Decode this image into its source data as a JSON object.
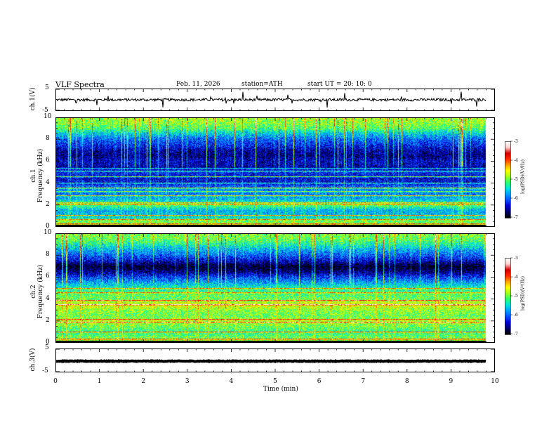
{
  "header": {
    "title": "VLF  Spectra",
    "date": "Feb. 11, 2026",
    "station": "station=ATH",
    "start": "start  UT  =   20: 10: 0"
  },
  "colors": {
    "colormap": [
      "#000000",
      "#00006e",
      "#0000d2",
      "#0a50ff",
      "#00a0ff",
      "#00e6dc",
      "#2dff6e",
      "#a0ff1e",
      "#ffff00",
      "#ffa000",
      "#ff2800",
      "#d20000",
      "#ffd2d2",
      "#ffffff"
    ]
  },
  "chart_data": [
    {
      "type": "line",
      "name": "ch1-waveform",
      "ylabel": "ch.1(V)",
      "ylim": [
        -5,
        5
      ],
      "yticks": [
        "5",
        "-5"
      ],
      "xlim": [
        0,
        10
      ],
      "description_of_signal": "noisy waveform around 0 V with occasional spikes",
      "baseline": 0.0,
      "noise_amplitude": 0.6,
      "grid": false
    },
    {
      "type": "heatmap",
      "name": "ch1-spectrogram",
      "ylabel": "ch.1\nFrequency  (kHz)",
      "ylim": [
        0,
        10
      ],
      "yticks": [
        "0",
        "2",
        "4",
        "6",
        "8",
        "10"
      ],
      "xlim": [
        0,
        10
      ],
      "data_end_min": 9.8,
      "colorbar": {
        "label": "log(PSD)(V²/Hz)",
        "range": [
          -7,
          -3
        ],
        "ticks": [
          "-3",
          "-4",
          "-5",
          "-6",
          "-7"
        ]
      },
      "profile": [
        {
          "f": 0.0,
          "v": -4.8
        },
        {
          "f": 0.5,
          "v": -5.0
        },
        {
          "f": 1.0,
          "v": -5.6
        },
        {
          "f": 1.5,
          "v": -5.7
        },
        {
          "f": 2.0,
          "v": -5.1
        },
        {
          "f": 2.5,
          "v": -5.6
        },
        {
          "f": 3.0,
          "v": -5.9
        },
        {
          "f": 3.5,
          "v": -5.8
        },
        {
          "f": 4.0,
          "v": -6.3
        },
        {
          "f": 4.5,
          "v": -6.4
        },
        {
          "f": 5.0,
          "v": -6.2
        },
        {
          "f": 5.5,
          "v": -6.5
        },
        {
          "f": 6.0,
          "v": -6.4
        },
        {
          "f": 6.5,
          "v": -6.6
        },
        {
          "f": 7.0,
          "v": -6.5
        },
        {
          "f": 7.5,
          "v": -6.2
        },
        {
          "f": 8.0,
          "v": -6.0
        },
        {
          "f": 8.5,
          "v": -5.6
        },
        {
          "f": 9.0,
          "v": -5.1
        },
        {
          "f": 9.5,
          "v": -4.9
        },
        {
          "f": 10.0,
          "v": -4.8
        }
      ],
      "lines_khz": [
        0.3,
        0.7,
        1.1,
        2.1,
        2.25,
        2.9,
        3.3,
        3.6,
        4.05,
        4.6,
        5.1,
        5.4
      ]
    },
    {
      "type": "heatmap",
      "name": "ch2-spectrogram",
      "ylabel": "ch.2\nFrequency  (kHz)",
      "ylim": [
        0,
        10
      ],
      "yticks": [
        "0",
        "2",
        "4",
        "6",
        "8",
        "10"
      ],
      "xlim": [
        0,
        10
      ],
      "data_end_min": 9.8,
      "colorbar": {
        "label": "log(PSD)(V²/Hz)",
        "range": [
          -7,
          -3
        ],
        "ticks": [
          "-3",
          "-4",
          "-5",
          "-6",
          "-7"
        ]
      },
      "profile": [
        {
          "f": 0.0,
          "v": -4.7
        },
        {
          "f": 0.5,
          "v": -5.0
        },
        {
          "f": 1.0,
          "v": -5.2
        },
        {
          "f": 1.5,
          "v": -5.0
        },
        {
          "f": 2.0,
          "v": -4.8
        },
        {
          "f": 2.5,
          "v": -5.0
        },
        {
          "f": 3.0,
          "v": -4.9
        },
        {
          "f": 3.5,
          "v": -4.6
        },
        {
          "f": 4.0,
          "v": -5.0
        },
        {
          "f": 4.5,
          "v": -5.1
        },
        {
          "f": 5.0,
          "v": -5.3
        },
        {
          "f": 5.5,
          "v": -5.7
        },
        {
          "f": 6.0,
          "v": -6.1
        },
        {
          "f": 6.5,
          "v": -6.6
        },
        {
          "f": 7.0,
          "v": -6.9
        },
        {
          "f": 7.5,
          "v": -6.4
        },
        {
          "f": 8.0,
          "v": -6.0
        },
        {
          "f": 8.5,
          "v": -5.7
        },
        {
          "f": 9.0,
          "v": -5.3
        },
        {
          "f": 9.5,
          "v": -5.0
        },
        {
          "f": 10.0,
          "v": -4.9
        }
      ],
      "lines_khz": [
        0.4,
        1.0,
        1.9,
        2.2,
        3.5,
        3.9,
        4.6,
        5.0
      ]
    },
    {
      "type": "line",
      "name": "ch3-waveform",
      "ylabel": "ch.3(V)",
      "ylim": [
        -5,
        5
      ],
      "yticks": [
        "5",
        "-5"
      ],
      "xlim": [
        0,
        10
      ],
      "baseline": -0.3,
      "noise_amplitude": 0.15,
      "grid": false
    }
  ],
  "xaxis": {
    "label": "Time  (min)",
    "ticks": [
      "0",
      "1",
      "2",
      "3",
      "4",
      "5",
      "6",
      "7",
      "8",
      "9",
      "10"
    ]
  }
}
